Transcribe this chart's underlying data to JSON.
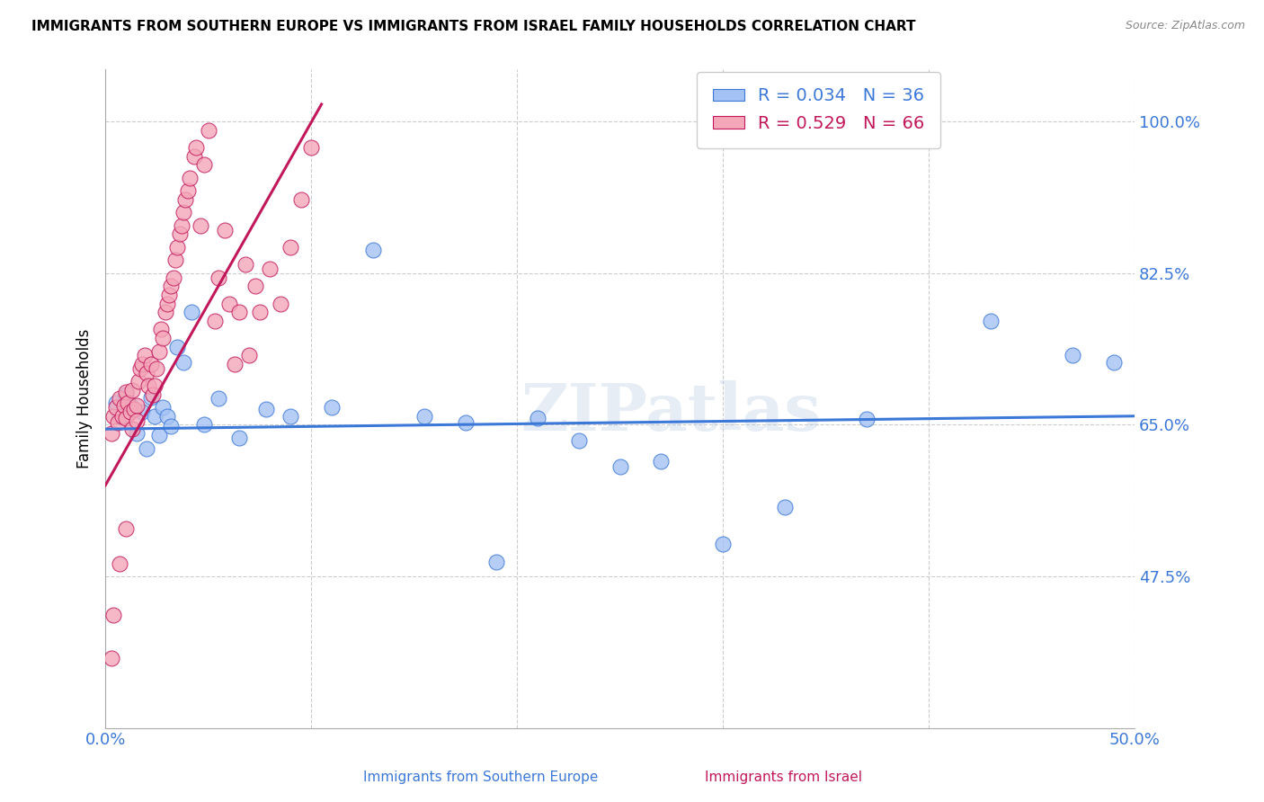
{
  "title": "IMMIGRANTS FROM SOUTHERN EUROPE VS IMMIGRANTS FROM ISRAEL FAMILY HOUSEHOLDS CORRELATION CHART",
  "source": "Source: ZipAtlas.com",
  "ylabel": "Family Households",
  "x_label_bottom_blue": "Immigrants from Southern Europe",
  "x_label_bottom_pink": "Immigrants from Israel",
  "xlim": [
    0.0,
    0.5
  ],
  "ylim": [
    0.3,
    1.06
  ],
  "yticks": [
    0.475,
    0.65,
    0.825,
    1.0
  ],
  "ytick_labels": [
    "47.5%",
    "65.0%",
    "82.5%",
    "100.0%"
  ],
  "xticks": [
    0.0,
    0.1,
    0.2,
    0.3,
    0.4,
    0.5
  ],
  "xtick_labels": [
    "0.0%",
    "",
    "",
    "",
    "",
    "50.0%"
  ],
  "blue_R": 0.034,
  "blue_N": 36,
  "pink_R": 0.529,
  "pink_N": 66,
  "blue_color": "#a4c2f4",
  "pink_color": "#f4a7b9",
  "blue_line_color": "#3c78d8",
  "pink_line_color": "#c2185b",
  "watermark": "ZIPatlas",
  "blue_points_x": [
    0.005,
    0.007,
    0.01,
    0.012,
    0.015,
    0.018,
    0.02,
    0.022,
    0.024,
    0.026,
    0.028,
    0.03,
    0.032,
    0.035,
    0.038,
    0.042,
    0.048,
    0.055,
    0.065,
    0.078,
    0.09,
    0.11,
    0.13,
    0.155,
    0.175,
    0.19,
    0.21,
    0.23,
    0.25,
    0.27,
    0.3,
    0.33,
    0.37,
    0.43,
    0.47,
    0.49
  ],
  "blue_points_y": [
    0.675,
    0.66,
    0.685,
    0.672,
    0.64,
    0.665,
    0.622,
    0.682,
    0.66,
    0.638,
    0.67,
    0.66,
    0.648,
    0.74,
    0.722,
    0.78,
    0.65,
    0.68,
    0.635,
    0.668,
    0.66,
    0.67,
    0.852,
    0.66,
    0.652,
    0.492,
    0.658,
    0.632,
    0.602,
    0.608,
    0.512,
    0.555,
    0.657,
    0.77,
    0.73,
    0.722
  ],
  "pink_points_x": [
    0.003,
    0.004,
    0.005,
    0.006,
    0.007,
    0.008,
    0.009,
    0.01,
    0.01,
    0.011,
    0.012,
    0.013,
    0.013,
    0.014,
    0.015,
    0.015,
    0.016,
    0.017,
    0.018,
    0.019,
    0.02,
    0.021,
    0.022,
    0.023,
    0.024,
    0.025,
    0.026,
    0.027,
    0.028,
    0.029,
    0.03,
    0.031,
    0.032,
    0.033,
    0.034,
    0.035,
    0.036,
    0.037,
    0.038,
    0.039,
    0.04,
    0.041,
    0.043,
    0.044,
    0.046,
    0.048,
    0.05,
    0.053,
    0.055,
    0.058,
    0.06,
    0.063,
    0.065,
    0.068,
    0.07,
    0.073,
    0.075,
    0.08,
    0.085,
    0.09,
    0.095,
    0.1,
    0.003,
    0.004,
    0.007,
    0.01
  ],
  "pink_points_y": [
    0.64,
    0.66,
    0.67,
    0.652,
    0.68,
    0.66,
    0.672,
    0.688,
    0.658,
    0.675,
    0.665,
    0.69,
    0.645,
    0.668,
    0.672,
    0.655,
    0.7,
    0.715,
    0.72,
    0.73,
    0.71,
    0.695,
    0.72,
    0.685,
    0.695,
    0.715,
    0.735,
    0.76,
    0.75,
    0.78,
    0.79,
    0.8,
    0.81,
    0.82,
    0.84,
    0.855,
    0.87,
    0.88,
    0.895,
    0.91,
    0.92,
    0.935,
    0.96,
    0.97,
    0.88,
    0.95,
    0.99,
    0.77,
    0.82,
    0.875,
    0.79,
    0.72,
    0.78,
    0.835,
    0.73,
    0.81,
    0.78,
    0.83,
    0.79,
    0.855,
    0.91,
    0.97,
    0.38,
    0.43,
    0.49,
    0.53
  ],
  "pink_trend_x0": 0.0,
  "pink_trend_y0": 0.58,
  "pink_trend_x1": 0.105,
  "pink_trend_y1": 1.02,
  "blue_trend_x0": 0.0,
  "blue_trend_y0": 0.645,
  "blue_trend_x1": 0.5,
  "blue_trend_y1": 0.66
}
